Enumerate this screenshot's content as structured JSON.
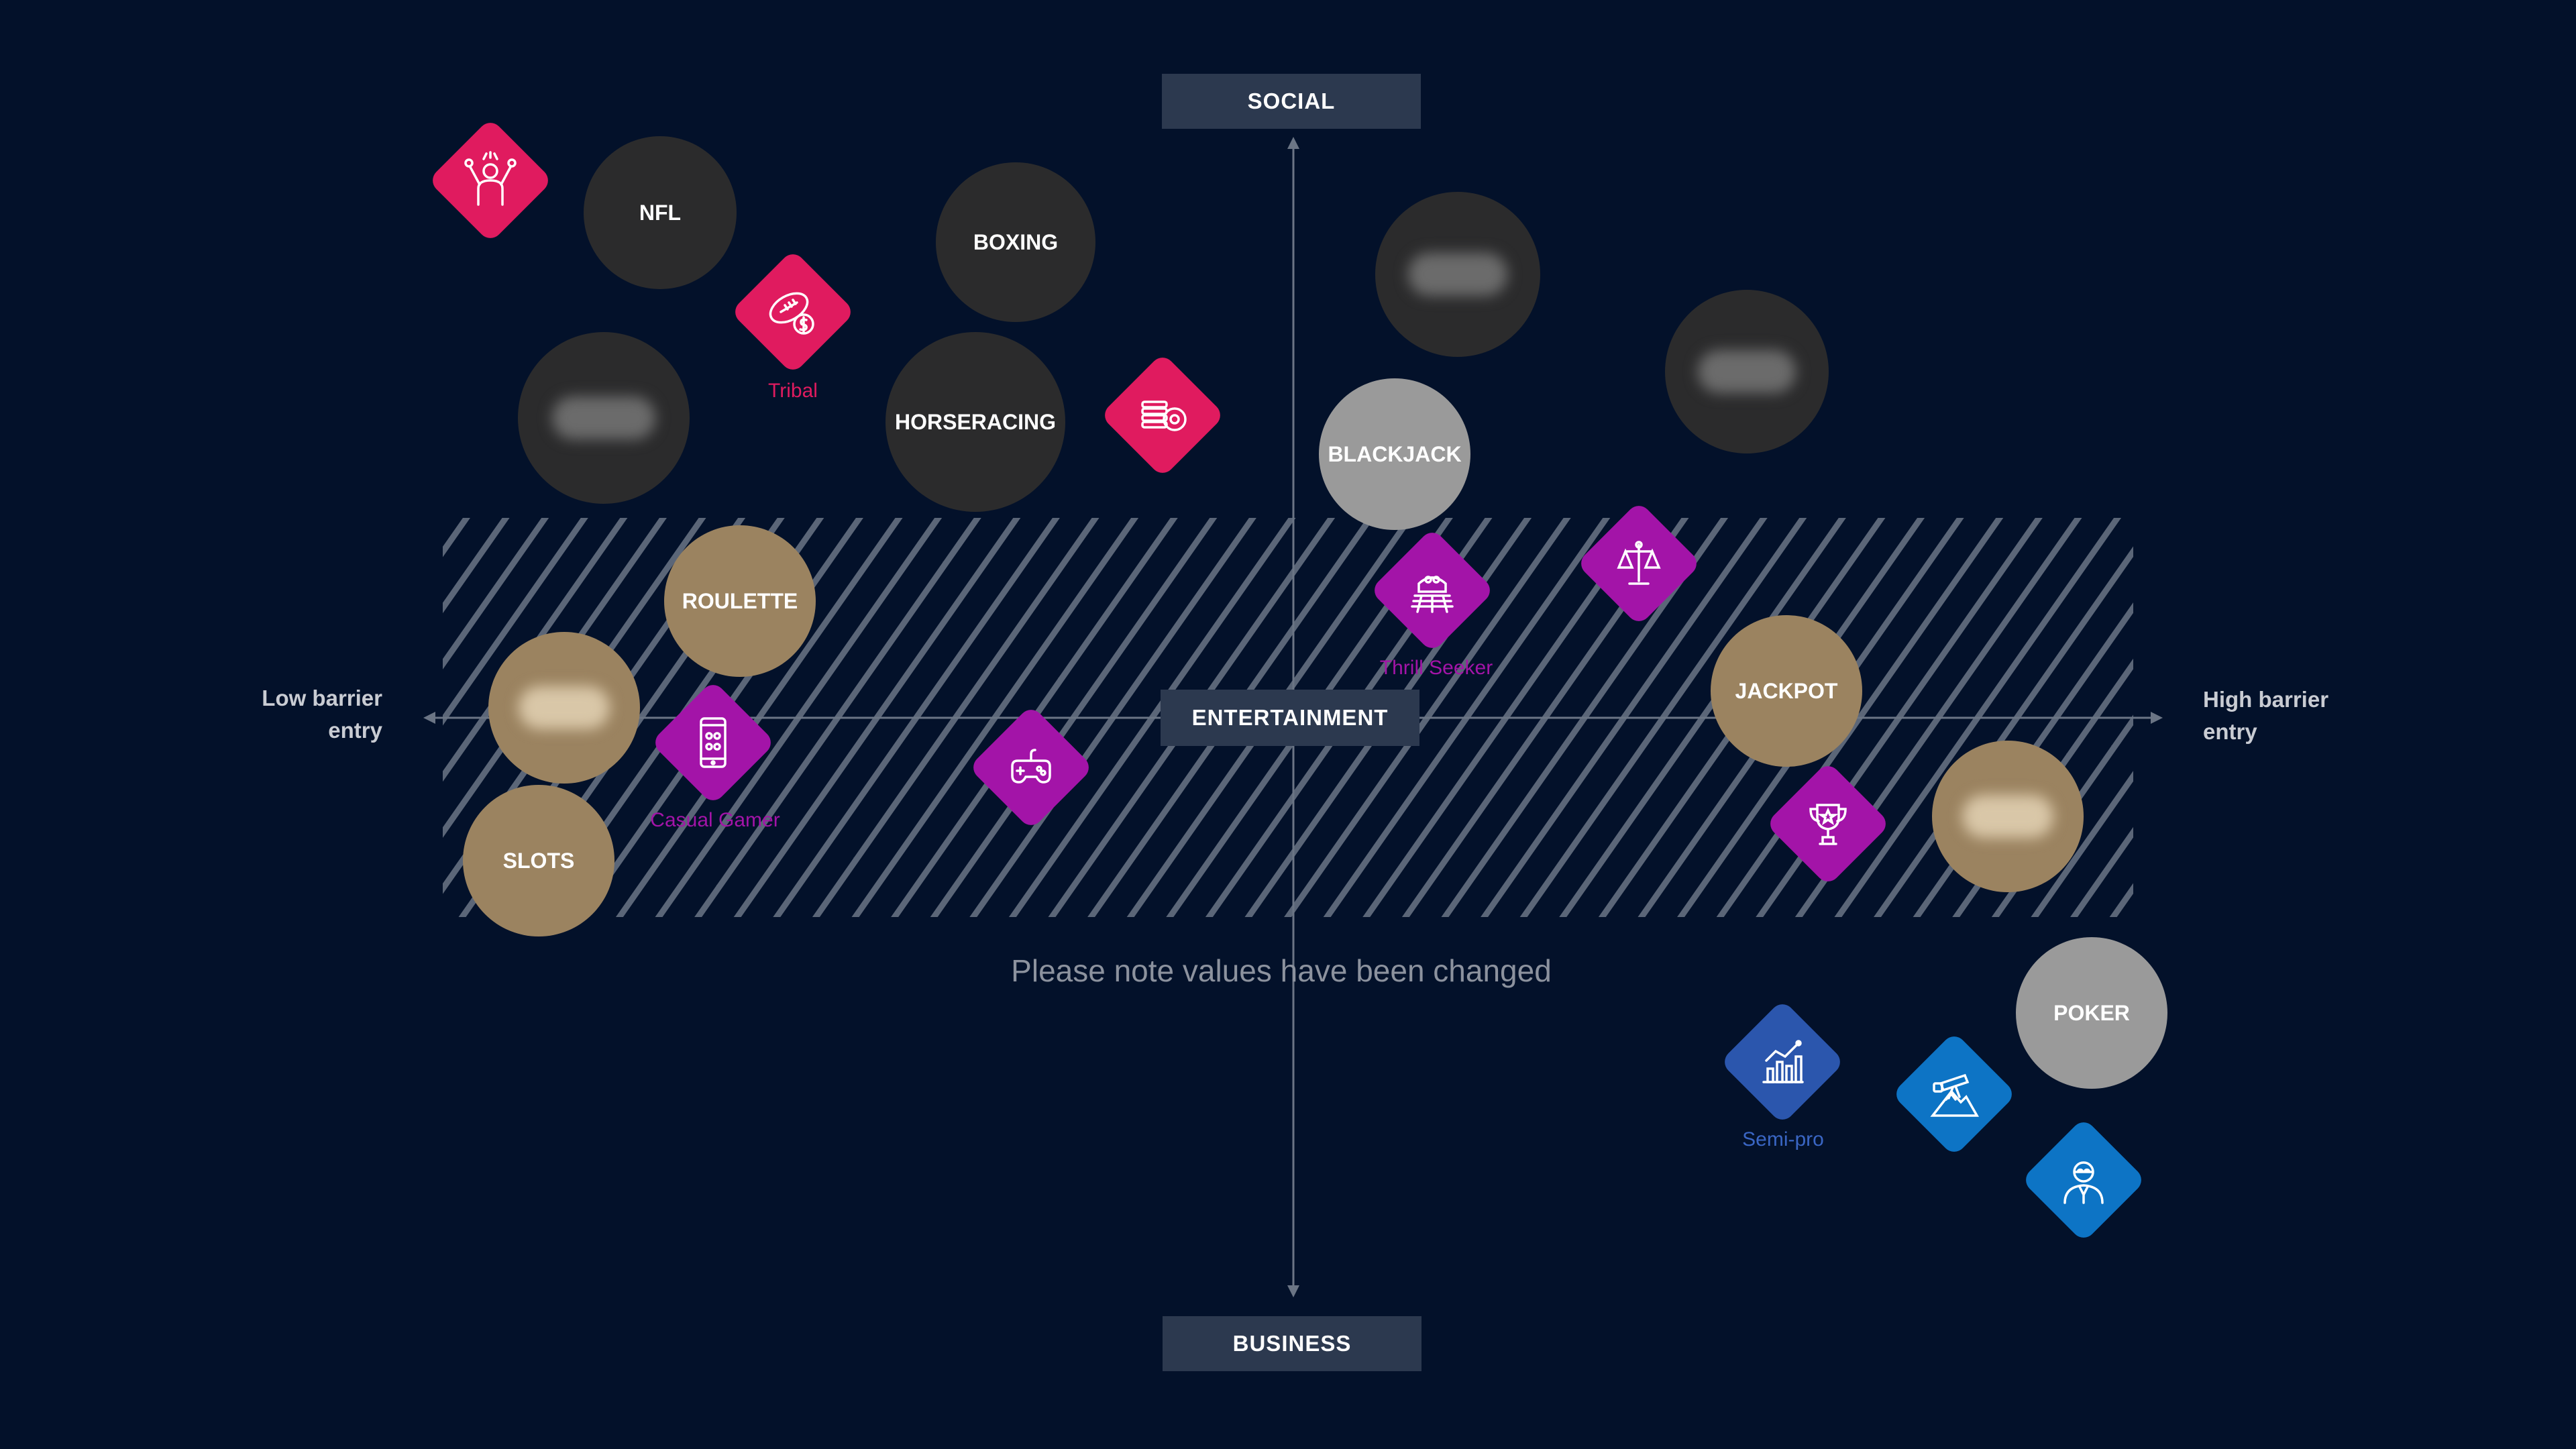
{
  "axes": {
    "top": "SOCIAL",
    "center": "ENTERTAINMENT",
    "bottom": "BUSINESS",
    "left": [
      "Low barrier",
      "entry"
    ],
    "right": [
      "High barrier",
      "entry"
    ]
  },
  "note": "Please note values have been changed",
  "circles": {
    "nfl": "NFL",
    "boxing": "BOXING",
    "horseracing": "HORSERACING",
    "blackjack": "BLACKJACK",
    "roulette": "ROULETTE",
    "slots": "SLOTS",
    "jackpot": "JACKPOT",
    "poker": "POKER"
  },
  "personas": {
    "tribal": "Tribal",
    "thrill_seeker": "Thrill Seeker",
    "casual_gamer": "Casual Gamer",
    "semi_pro": "Semi-pro"
  },
  "colors": {
    "background": "#03112a",
    "dark_circle": "#2b2b2c",
    "gold_circle": "#9b8360",
    "grey_circle": "#9a9a9a",
    "pink": "#e01b5f",
    "purple": "#a314a8",
    "navy": "#2b56ad",
    "blue": "#0d74c5"
  }
}
